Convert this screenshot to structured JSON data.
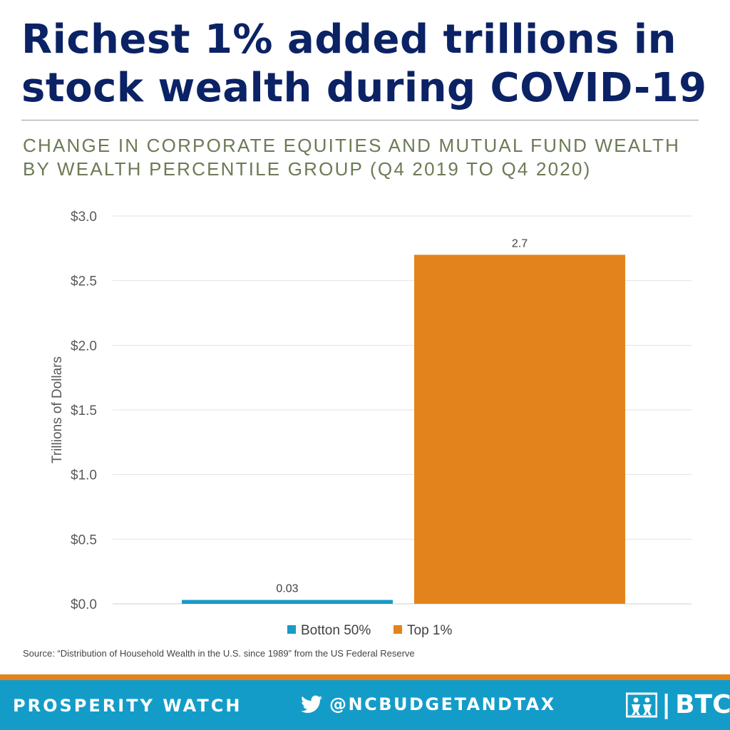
{
  "header": {
    "title": "Richest 1% added trillions in stock wealth during COVID-19",
    "subtitle": "CHANGE IN CORPORATE EQUITIES AND MUTUAL FUND WEALTH BY WEALTH PERCENTILE GROUP (Q4 2019 TO Q4 2020)"
  },
  "chart_data": {
    "type": "bar",
    "title": "",
    "xlabel": "",
    "ylabel": "Trillions of Dollars",
    "ylim": [
      0,
      3.0
    ],
    "yticks": [
      0,
      0.5,
      1.0,
      1.5,
      2.0,
      2.5,
      3.0
    ],
    "ytick_labels": [
      "$0.0",
      "$0.5",
      "$1.0",
      "$1.5",
      "$2.0",
      "$2.5",
      "$3.0"
    ],
    "grid": true,
    "legend_position": "bottom",
    "series": [
      {
        "name": "Botton 50%",
        "values": [
          0.03
        ],
        "data_label": "0.03",
        "color": "#1a9ac6"
      },
      {
        "name": "Top 1%",
        "values": [
          2.7
        ],
        "data_label": "2.7",
        "color": "#e2841b"
      }
    ]
  },
  "source": "Source: “Distribution of Household Wealth in the U.S. since 1989” from the US Federal Reserve",
  "footer": {
    "left_text": "PROSPERITY WATCH",
    "twitter_handle": "@NCBUDGETANDTAX",
    "twitter_icon": "twitter-bird-icon",
    "logo_text": "BTC",
    "logo_icon": "figures-logo-icon",
    "background_color": "#149cc8",
    "accent_color": "#e2841b"
  }
}
